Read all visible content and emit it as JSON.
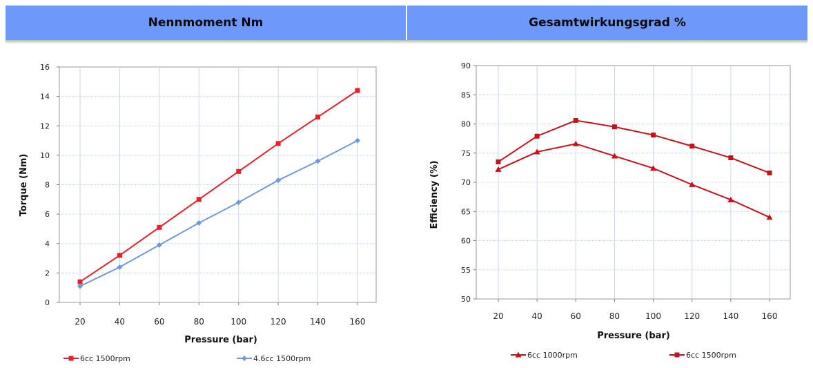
{
  "headers": {
    "left": "Nennmoment Nm",
    "right": "Gesamtwirkungsgrad %"
  },
  "colors": {
    "header_bg": "#6f98fb",
    "red": "#e8202a",
    "blue": "#6f9ad6",
    "dark_red": "#c8101a",
    "grid": "#c8d6ee",
    "axis": "#7a7a7a"
  },
  "chart_data": [
    {
      "type": "line",
      "xlabel": "Pressure (bar)",
      "ylabel": "Torque (Nm)",
      "xlim": [
        20,
        160
      ],
      "ylim": [
        0,
        16
      ],
      "x": [
        20,
        40,
        60,
        80,
        100,
        120,
        140,
        160
      ],
      "xticks": [
        "20",
        "40",
        "60",
        "80",
        "100",
        "120",
        "140",
        "160"
      ],
      "yticks": [
        "0",
        "2",
        "4",
        "6",
        "8",
        "10",
        "12",
        "14",
        "16"
      ],
      "grid": true,
      "legend_position": "bottom",
      "series": [
        {
          "name": "6cc 1500rpm",
          "values": [
            1.4,
            3.2,
            5.1,
            7.0,
            8.9,
            10.8,
            12.6,
            14.4
          ]
        },
        {
          "name": "4.6cc 1500rpm",
          "values": [
            1.1,
            2.4,
            3.9,
            5.4,
            6.8,
            8.3,
            9.6,
            11.0
          ]
        }
      ]
    },
    {
      "type": "line",
      "xlabel": "Pressure (bar)",
      "ylabel": "Efficiency (%)",
      "xlim": [
        20,
        160
      ],
      "ylim": [
        50,
        90
      ],
      "x": [
        20,
        40,
        60,
        80,
        100,
        120,
        140,
        160
      ],
      "xticks": [
        "20",
        "40",
        "60",
        "80",
        "100",
        "120",
        "140",
        "160"
      ],
      "yticks": [
        "50",
        "55",
        "60",
        "65",
        "70",
        "75",
        "80",
        "85",
        "90"
      ],
      "grid": true,
      "legend_position": "bottom",
      "series": [
        {
          "name": "6cc 1000rpm",
          "values": [
            72.2,
            75.2,
            76.6,
            74.5,
            72.4,
            69.6,
            67.0,
            64.0
          ]
        },
        {
          "name": "6cc 1500rpm",
          "values": [
            73.5,
            77.9,
            80.6,
            79.5,
            78.1,
            76.2,
            74.2,
            71.6
          ]
        }
      ]
    }
  ]
}
